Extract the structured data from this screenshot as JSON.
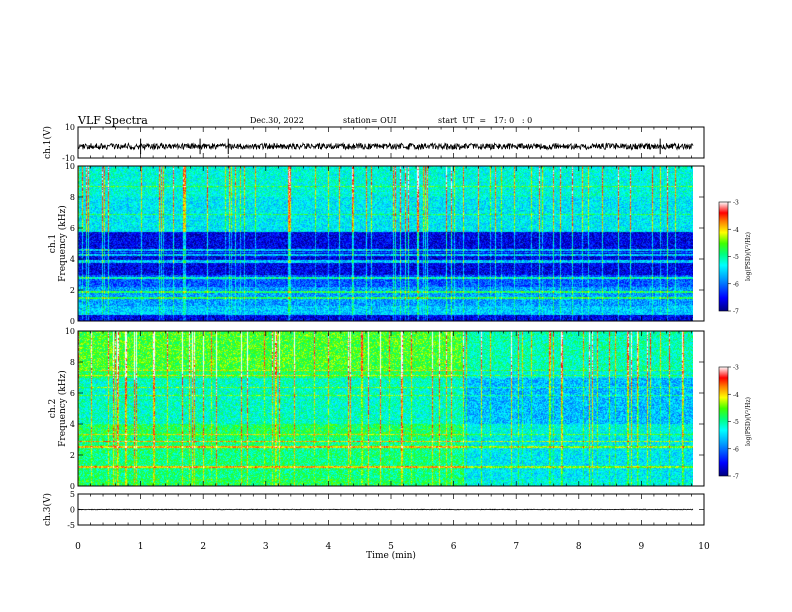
{
  "header": {
    "title": "VLF Spectra",
    "date": "Dec.30, 2022",
    "station": "station= OUI",
    "start": "start  UT  =   17: 0   : 0"
  },
  "colors": {
    "colormap": [
      "#000080",
      "#0000ff",
      "#00a0ff",
      "#00ffff",
      "#00ff80",
      "#40ff00",
      "#ffff00",
      "#ff8000",
      "#ff0000",
      "#ffffff"
    ],
    "trace": "#000000"
  },
  "chart_data": [
    {
      "type": "line",
      "ylabel": "ch.1(V)",
      "ylim": [
        -10,
        10
      ],
      "yticks": [
        "10",
        "-10"
      ],
      "xlim": [
        0,
        10
      ],
      "baseline": -2.5,
      "note_visible_spikes_min": [
        1.0,
        1.95,
        2.4,
        9.3
      ]
    },
    {
      "type": "heatmap",
      "ylabel": "ch.1\nFrequency (kHz)",
      "ylim": [
        0,
        10
      ],
      "yticks": [
        "0",
        "2",
        "4",
        "6",
        "8",
        "10"
      ],
      "xlim": [
        0,
        9.83
      ],
      "colorbar": {
        "label": "log(PSD)(V²/Hz)",
        "range": [
          -7,
          -3
        ],
        "ticks": [
          "-3",
          "-4",
          "-5",
          "-6",
          "-7"
        ]
      },
      "dark_bands_khz": [
        [
          0.0,
          0.4
        ],
        [
          3.0,
          3.8
        ],
        [
          4.0,
          5.8
        ]
      ],
      "bright_lines_khz": [
        1.5,
        1.9,
        2.8,
        4.3,
        4.6
      ]
    },
    {
      "type": "heatmap",
      "ylabel": "ch.2\nFrequency (kHz)",
      "ylim": [
        0,
        10
      ],
      "yticks": [
        "0",
        "2",
        "4",
        "6",
        "8",
        "10"
      ],
      "xlim": [
        0,
        9.83
      ],
      "colorbar": {
        "label": "log(PSD)(V²/Hz)",
        "range": [
          -7,
          -3
        ],
        "ticks": [
          "-3",
          "-4",
          "-5",
          "-6",
          "-7"
        ]
      },
      "regime_change_min": 6.15,
      "bright_lines_khz": [
        1.25,
        2.55,
        2.9
      ]
    },
    {
      "type": "line",
      "ylabel": "ch.3(V)",
      "ylim": [
        -5,
        5
      ],
      "yticks": [
        "5",
        "0",
        "-5"
      ],
      "xlim": [
        0,
        10
      ],
      "baseline": 0,
      "xlabel": "Time  (min)",
      "xticks": [
        "0",
        "1",
        "2",
        "3",
        "4",
        "5",
        "6",
        "7",
        "8",
        "9",
        "10"
      ]
    }
  ]
}
